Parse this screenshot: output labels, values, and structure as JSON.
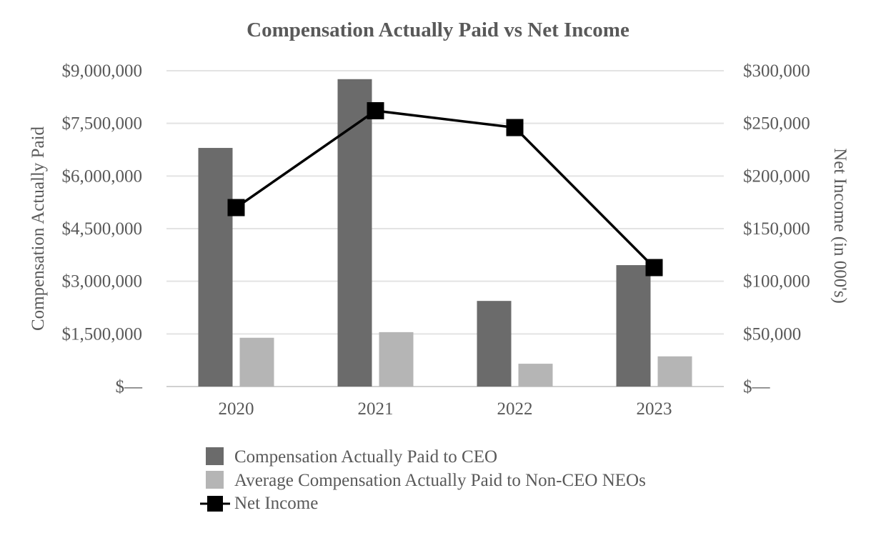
{
  "chart_data": {
    "type": "bar",
    "title": "Compensation Actually Paid vs Net Income",
    "categories": [
      "2020",
      "2021",
      "2022",
      "2023"
    ],
    "ylabel": "Compensation Actually Paid",
    "y2label": "Net Income (in 000's)",
    "ylim": [
      0,
      9000000
    ],
    "y2lim": [
      0,
      300000
    ],
    "yticks": [
      0,
      1500000,
      3000000,
      4500000,
      6000000,
      7500000,
      9000000
    ],
    "ytick_labels": [
      "$—",
      "$1,500,000",
      "$3,000,000",
      "$4,500,000",
      "$6,000,000",
      "$7,500,000",
      "$9,000,000"
    ],
    "y2ticks": [
      0,
      50000,
      100000,
      150000,
      200000,
      250000,
      300000
    ],
    "y2tick_labels": [
      "$—",
      "$50,000",
      "$100,000",
      "$150,000",
      "$200,000",
      "$250,000",
      "$300,000"
    ],
    "grid": true,
    "legend_position": "bottom",
    "series": [
      {
        "name": "Compensation Actually Paid to CEO",
        "kind": "bar",
        "axis": "left",
        "color": "#6b6b6b",
        "values": [
          6800000,
          8760000,
          2440000,
          3460000
        ]
      },
      {
        "name": "Average Compensation Actually Paid to Non-CEO NEOs",
        "kind": "bar",
        "axis": "left",
        "color": "#b5b5b5",
        "values": [
          1390000,
          1550000,
          650000,
          860000
        ]
      },
      {
        "name": "Net Income",
        "kind": "line",
        "axis": "right",
        "color": "#000000",
        "values": [
          170000,
          262000,
          246000,
          113000
        ]
      }
    ]
  }
}
